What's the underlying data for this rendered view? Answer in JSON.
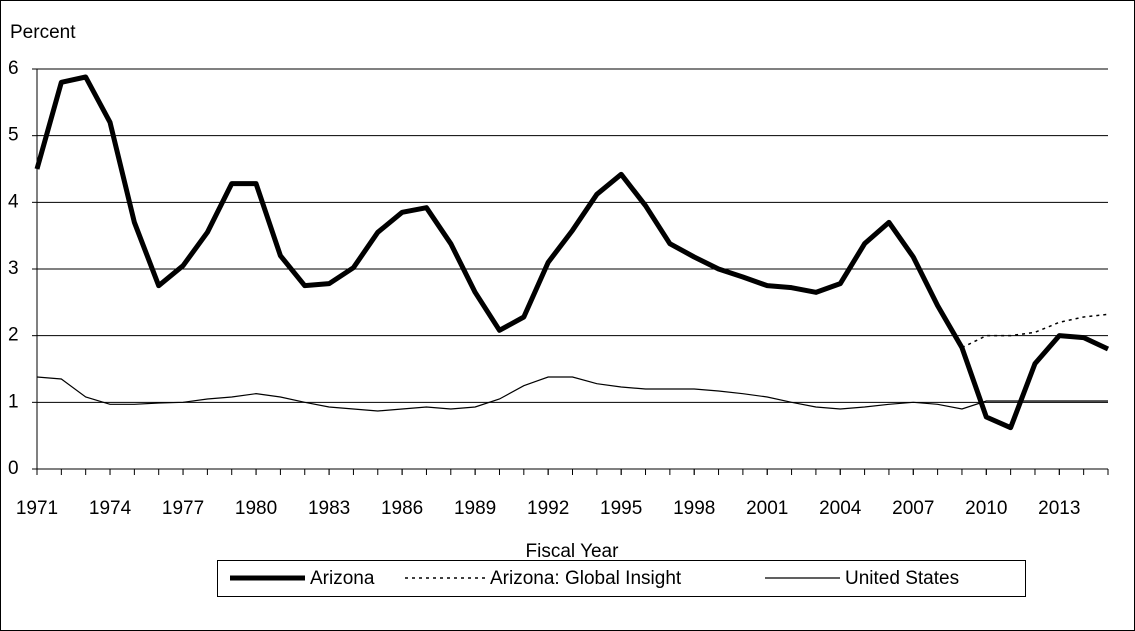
{
  "chart_data": {
    "type": "line",
    "y_label": "Percent",
    "x_label": "Fiscal Year",
    "x": [
      1971,
      1972,
      1973,
      1974,
      1975,
      1976,
      1977,
      1978,
      1979,
      1980,
      1981,
      1982,
      1983,
      1984,
      1985,
      1986,
      1987,
      1988,
      1989,
      1990,
      1991,
      1992,
      1993,
      1994,
      1995,
      1996,
      1997,
      1998,
      1999,
      2000,
      2001,
      2002,
      2003,
      2004,
      2005,
      2006,
      2007,
      2008,
      2009,
      2010,
      2011,
      2012,
      2013,
      2014,
      2015
    ],
    "xlim": [
      1971,
      2015
    ],
    "xticks": [
      1971,
      1974,
      1977,
      1980,
      1983,
      1986,
      1989,
      1992,
      1995,
      1998,
      2001,
      2004,
      2007,
      2010,
      2013
    ],
    "ylim": [
      0,
      6
    ],
    "yticks": [
      0,
      1,
      2,
      3,
      4,
      5,
      6
    ],
    "grid": true,
    "legend": "bottom",
    "series": [
      {
        "name": "Arizona",
        "color": "#000000",
        "style": "thick",
        "values": [
          4.5,
          5.8,
          5.88,
          5.2,
          3.7,
          2.75,
          3.05,
          3.55,
          4.28,
          4.28,
          3.2,
          2.75,
          2.78,
          3.02,
          3.55,
          3.85,
          3.92,
          3.38,
          2.65,
          2.08,
          2.28,
          3.1,
          3.58,
          4.12,
          4.42,
          3.95,
          3.38,
          3.18,
          3.0,
          2.88,
          2.75,
          2.72,
          2.65,
          2.78,
          3.38,
          3.7,
          3.18,
          2.45,
          1.82,
          0.78,
          0.62,
          1.58,
          2.0,
          1.97,
          1.8
        ]
      },
      {
        "name": "Arizona: Global Insight",
        "color": "#000000",
        "style": "dotted",
        "values": [
          null,
          null,
          null,
          null,
          null,
          null,
          null,
          null,
          null,
          null,
          null,
          null,
          null,
          null,
          null,
          null,
          null,
          null,
          null,
          null,
          null,
          null,
          null,
          null,
          null,
          null,
          null,
          null,
          null,
          null,
          null,
          null,
          null,
          null,
          null,
          null,
          null,
          null,
          1.82,
          2.0,
          2.0,
          2.05,
          2.2,
          2.28,
          2.32
        ]
      },
      {
        "name": "United States",
        "color": "#000000",
        "style": "thin",
        "values": [
          1.38,
          1.35,
          1.08,
          0.97,
          0.97,
          0.99,
          1.0,
          1.05,
          1.08,
          1.13,
          1.08,
          1.0,
          0.93,
          0.9,
          0.87,
          0.9,
          0.93,
          0.9,
          0.93,
          1.05,
          1.25,
          1.38,
          1.38,
          1.28,
          1.23,
          1.2,
          1.2,
          1.2,
          1.17,
          1.13,
          1.08,
          1.0,
          0.93,
          0.9,
          0.93,
          0.97,
          1.0,
          0.97,
          0.9,
          1.02,
          1.02,
          1.02,
          1.02,
          1.02,
          1.02
        ]
      }
    ]
  }
}
